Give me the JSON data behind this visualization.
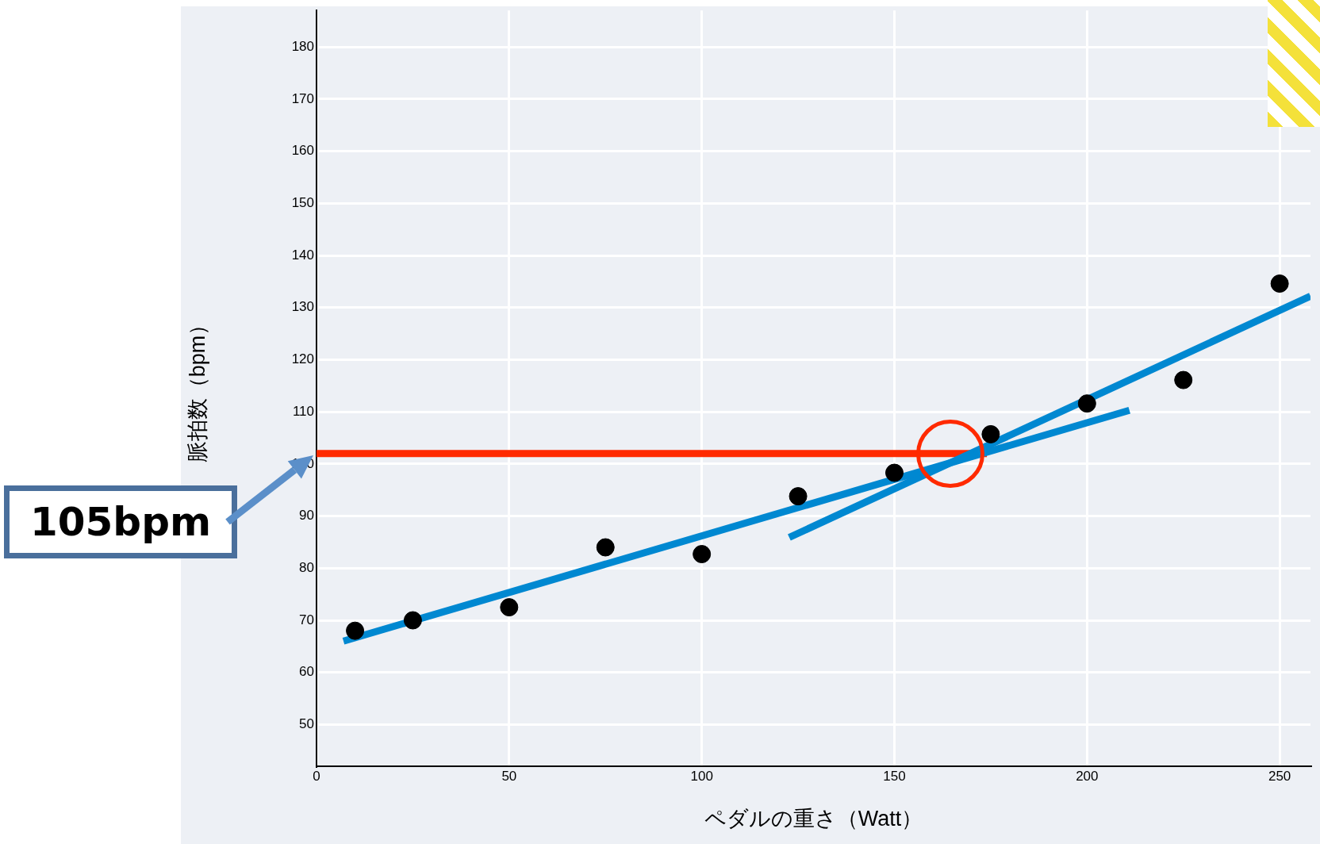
{
  "chart_data": {
    "type": "scatter",
    "xlabel": "ペダルの重さ（Watt）",
    "ylabel": "脈拍数（bpm）",
    "xlim": [
      0,
      258
    ],
    "ylim": [
      42,
      187
    ],
    "xticks": [
      0,
      50,
      100,
      150,
      200,
      250
    ],
    "yticks": [
      50,
      60,
      70,
      80,
      90,
      100,
      110,
      120,
      130,
      140,
      150,
      160,
      170,
      180
    ],
    "grid": true,
    "series": [
      {
        "type": "scatter",
        "marker": "circle",
        "color": "#000000",
        "x": [
          10,
          25,
          50,
          75,
          100,
          125,
          150,
          175,
          200,
          225,
          250
        ],
        "values": [
          68,
          70,
          72.5,
          84,
          82.7,
          93.8,
          98.3,
          105.7,
          111.6,
          116.1,
          134.6
        ]
      },
      {
        "type": "line",
        "marker": "none",
        "color": "#0088d1",
        "x": [
          7,
          211
        ],
        "values": [
          66,
          110.3
        ]
      },
      {
        "type": "line",
        "marker": "none",
        "color": "#0088d1",
        "x": [
          122.7,
          258
        ],
        "values": [
          85.9,
          132.2
        ]
      },
      {
        "type": "line",
        "marker": "none",
        "color": "#ff2a00",
        "x": [
          0,
          174
        ],
        "values": [
          102,
          102
        ]
      }
    ],
    "annotations": [
      {
        "text": "105bpm",
        "x": 0,
        "y": 102
      }
    ]
  }
}
